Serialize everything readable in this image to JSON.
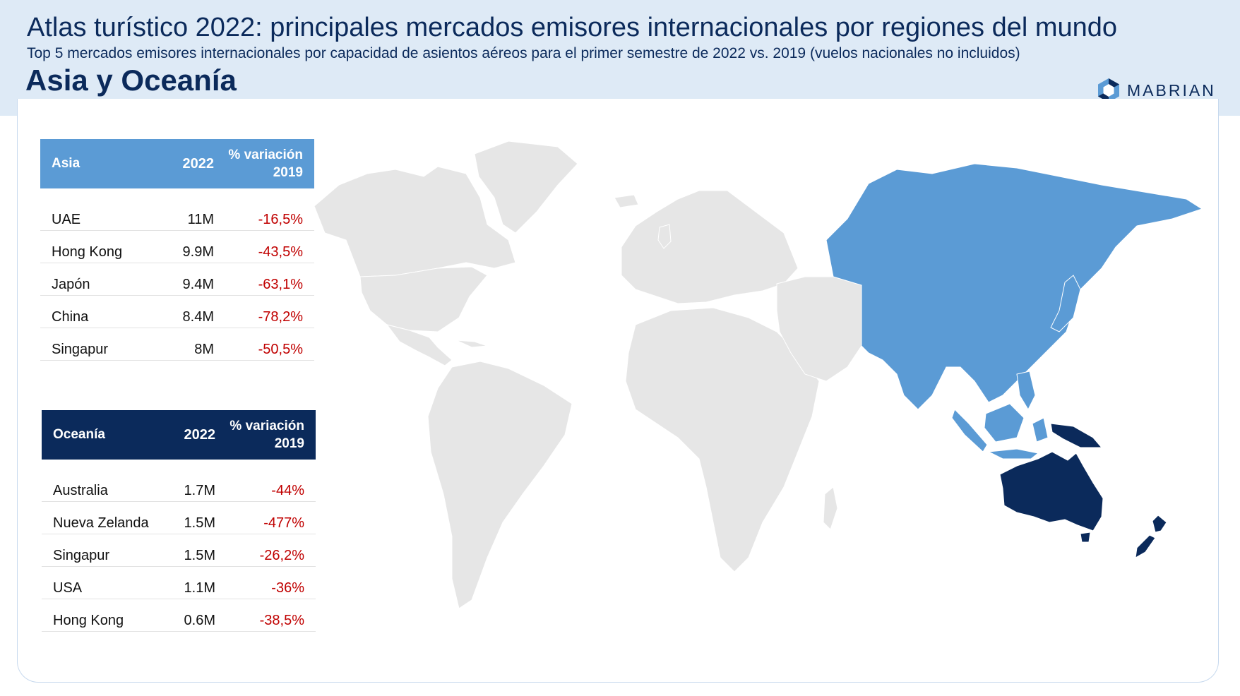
{
  "header": {
    "title": "Atlas turístico 2022: principales mercados emisores internacionales por regiones del mundo",
    "subtitle": "Top 5 mercados emisores internacionales por capacidad de asientos aéreos para el primer semestre de 2022 vs. 2019 (vuelos nacionales no incluidos)",
    "region": "Asia y Oceanía",
    "logo_text": "MABRIAN"
  },
  "colors": {
    "header_bg": "#deeaf6",
    "asia": "#5b9bd5",
    "oceania": "#0b2a5b",
    "land": "#e6e6e6",
    "negative": "#c00000"
  },
  "tables": [
    {
      "name": "Asia",
      "col_year": "2022",
      "col_var": "% variación 2019",
      "col_var_line1": "% variación",
      "col_var_line2": "2019",
      "color": "#5b9bd5",
      "rows": [
        {
          "market": "UAE",
          "value": "11M",
          "variation": "-16,5%"
        },
        {
          "market": "Hong Kong",
          "value": "9.9M",
          "variation": "-43,5%"
        },
        {
          "market": "Japón",
          "value": "9.4M",
          "variation": "-63,1%"
        },
        {
          "market": "China",
          "value": "8.4M",
          "variation": "-78,2%"
        },
        {
          "market": "Singapur",
          "value": "8M",
          "variation": "-50,5%"
        }
      ]
    },
    {
      "name": "Oceanía",
      "col_year": "2022",
      "col_var": "% variación 2019",
      "col_var_line1": "% variación",
      "col_var_line2": "2019",
      "color": "#0b2a5b",
      "rows": [
        {
          "market": "Australia",
          "value": "1.7M",
          "variation": "-44%"
        },
        {
          "market": "Nueva Zelanda",
          "value": "1.5M",
          "variation": "-477%"
        },
        {
          "market": "Singapur",
          "value": "1.5M",
          "variation": "-26,2%"
        },
        {
          "market": "USA",
          "value": "1.1M",
          "variation": "-36%"
        },
        {
          "market": "Hong Kong",
          "value": "0.6M",
          "variation": "-38,5%"
        }
      ]
    }
  ],
  "map": {
    "highlighted_regions": [
      {
        "region": "Asia",
        "color": "#5b9bd5"
      },
      {
        "region": "Oceanía",
        "color": "#0b2a5b"
      }
    ],
    "other_land_color": "#e6e6e6"
  }
}
